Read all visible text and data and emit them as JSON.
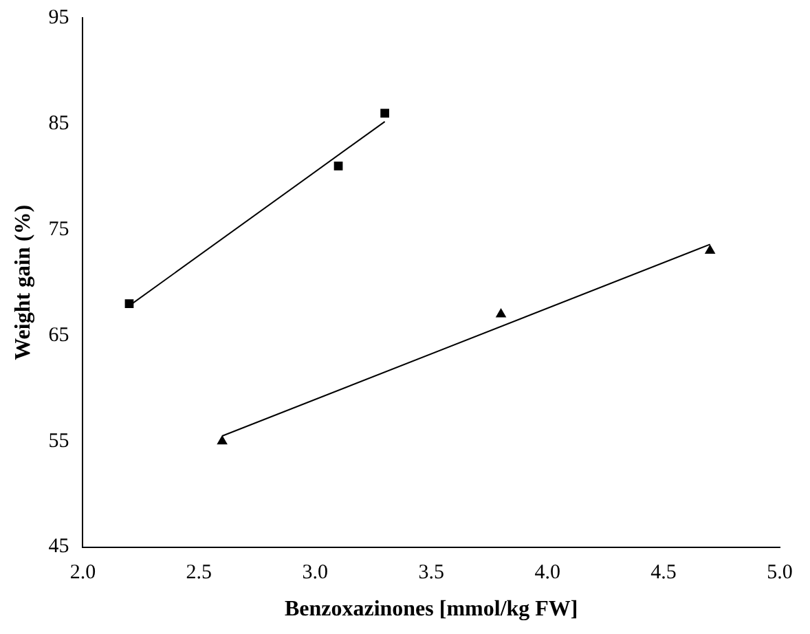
{
  "chart_data": {
    "type": "scatter",
    "xlabel": "Benzoxazinones [mmol/kg FW]",
    "ylabel": "Weight gain (%)",
    "xlim": [
      2,
      5
    ],
    "xticks": [
      {
        "value": 2,
        "label": "2.0"
      },
      {
        "value": 2.5,
        "label": "2.5"
      },
      {
        "value": 3,
        "label": "3.0"
      },
      {
        "value": 3.5,
        "label": "3.5"
      },
      {
        "value": 4,
        "label": "4.0"
      },
      {
        "value": 4.5,
        "label": "4.5"
      },
      {
        "value": 5,
        "label": "5.0"
      }
    ],
    "ylim": [
      45,
      95
    ],
    "yticks": [
      45,
      55,
      65,
      75,
      85,
      95
    ],
    "grid": false,
    "legend": false,
    "series": [
      {
        "type": "scatter",
        "marker": "square",
        "color": "#000000",
        "x": [
          2.2,
          3.1,
          3.3
        ],
        "values": [
          68,
          81,
          86
        ]
      },
      {
        "type": "scatter",
        "marker": "triangle",
        "color": "#000000",
        "x": [
          2.6,
          3.8,
          4.7
        ],
        "values": [
          55,
          67,
          73
        ]
      },
      {
        "type": "line",
        "marker": "none",
        "line_style": "solid",
        "color": "#000000",
        "x": [
          2.2,
          3.3
        ],
        "values": [
          67.8,
          85.2
        ]
      },
      {
        "type": "line",
        "marker": "none",
        "line_style": "solid",
        "color": "#000000",
        "x": [
          2.6,
          4.7
        ],
        "values": [
          55.5,
          73.6
        ]
      }
    ]
  }
}
